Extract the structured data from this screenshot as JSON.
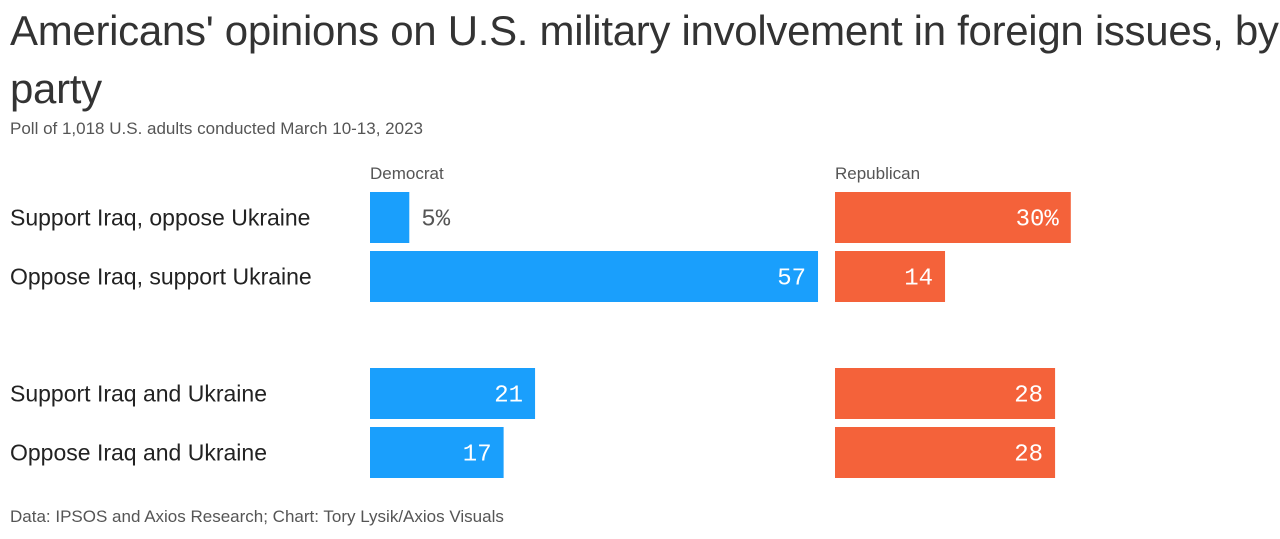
{
  "header": {
    "title": "Americans' opinions on U.S. military involvement in foreign issues, by party",
    "subtitle": "Poll of 1,018 U.S. adults conducted March 10-13, 2023"
  },
  "footer": {
    "source": "Data: IPSOS and Axios Research; Chart: Tory Lysik/Axios Visuals"
  },
  "chart_data": {
    "type": "bar",
    "orientation": "horizontal",
    "title": "Americans' opinions on U.S. military involvement in foreign issues, by party",
    "subtitle": "Poll of 1,018 U.S. adults conducted March 10-13, 2023",
    "unit": "%",
    "categories": [
      "Support Iraq, oppose Ukraine",
      "Oppose Iraq, support Ukraine",
      "Support Iraq and Ukraine",
      "Oppose Iraq and Ukraine"
    ],
    "groups": [
      [
        0,
        1
      ],
      [
        2,
        3
      ]
    ],
    "series": [
      {
        "name": "Democrat",
        "color": "#1a9ffc",
        "values": [
          5,
          57,
          21,
          17
        ],
        "labels": [
          "5%",
          "57",
          "21",
          "17"
        ]
      },
      {
        "name": "Republican",
        "color": "#f4623a",
        "values": [
          30,
          14,
          28,
          28
        ],
        "labels": [
          "30%",
          "14",
          "28",
          "28"
        ]
      }
    ],
    "xlim": [
      0,
      60
    ],
    "grid": false,
    "legend": "panel-headers"
  }
}
